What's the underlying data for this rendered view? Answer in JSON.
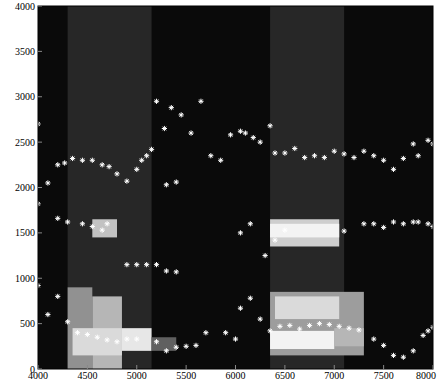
{
  "chart_data": {
    "type": "scatter",
    "marker": "star",
    "color": "#ffffff",
    "xlim": [
      4000,
      8000
    ],
    "ylim": [
      0,
      4000
    ],
    "xticks": [
      4000,
      4500,
      5000,
      5500,
      6000,
      6500,
      7000,
      7500,
      8000
    ],
    "yticks": [
      0,
      500,
      1000,
      1500,
      2000,
      2500,
      3000,
      3500,
      4000
    ],
    "grid": false,
    "zlim": [
      0,
      1
    ],
    "cells": [
      {
        "x0": 4300,
        "x1": 5150,
        "y0": 0,
        "y1": 4000,
        "value": 0.12
      },
      {
        "x0": 6350,
        "x1": 7100,
        "y0": 0,
        "y1": 4000,
        "value": 0.12
      },
      {
        "x0": 4300,
        "x1": 4550,
        "y0": 0,
        "y1": 900,
        "value": 0.55
      },
      {
        "x0": 4550,
        "x1": 4850,
        "y0": 0,
        "y1": 800,
        "value": 0.7
      },
      {
        "x0": 4350,
        "x1": 4850,
        "y0": 150,
        "y1": 450,
        "value": 0.85
      },
      {
        "x0": 4850,
        "x1": 5150,
        "y0": 200,
        "y1": 450,
        "value": 0.9
      },
      {
        "x0": 4550,
        "x1": 4800,
        "y0": 1450,
        "y1": 1650,
        "value": 0.75
      },
      {
        "x0": 5150,
        "x1": 5400,
        "y0": 200,
        "y1": 350,
        "value": 0.35
      },
      {
        "x0": 6350,
        "x1": 7300,
        "y0": 150,
        "y1": 850,
        "value": 0.6
      },
      {
        "x0": 6350,
        "x1": 7000,
        "y0": 220,
        "y1": 420,
        "value": 0.95
      },
      {
        "x0": 6400,
        "x1": 7050,
        "y0": 550,
        "y1": 800,
        "value": 0.85
      },
      {
        "x0": 7000,
        "x1": 7300,
        "y0": 250,
        "y1": 450,
        "value": 0.7
      },
      {
        "x0": 6350,
        "x1": 7050,
        "y0": 1350,
        "y1": 1650,
        "value": 0.8
      },
      {
        "x0": 6350,
        "x1": 7050,
        "y0": 1450,
        "y1": 1600,
        "value": 0.95
      }
    ],
    "series": [
      {
        "color": "#ffffff",
        "marker": "star",
        "x": [
          4000,
          4100,
          4200,
          4270,
          4350,
          4450,
          4550,
          4650,
          4720,
          4800,
          4900,
          5000,
          5050,
          5100,
          5150,
          5200,
          5280,
          5350,
          5450,
          5550,
          5650,
          5750,
          5850,
          5950,
          6050,
          6100,
          6180,
          6250,
          6350,
          6400,
          6500,
          6600,
          6700,
          6800,
          6900,
          7000,
          7100,
          7200,
          7300,
          7400,
          7500,
          7600,
          7700,
          7800,
          7850,
          7950,
          8000,
          4000,
          4200,
          4300,
          4450,
          4550,
          4650,
          4700,
          4900,
          5000,
          5100,
          5200,
          5300,
          5400,
          5300,
          5400,
          6050,
          6150,
          6300,
          6400,
          6500,
          7100,
          7300,
          7400,
          7500,
          7600,
          7700,
          7800,
          7850,
          7950,
          8000,
          4000,
          4100,
          4200,
          4300,
          4400,
          4500,
          4600,
          4700,
          4800,
          4900,
          5000,
          5200,
          5300,
          5400,
          5500,
          5600,
          5700,
          5900,
          6000,
          6050,
          6150,
          6250,
          6350,
          6450,
          6550,
          6650,
          6750,
          6850,
          6950,
          7050,
          7150,
          7250,
          7400,
          7500,
          7600,
          7700,
          7800,
          7900,
          7950,
          8000
        ],
        "values": [
          2700,
          2050,
          2250,
          2270,
          2320,
          2300,
          2300,
          2250,
          2230,
          2150,
          2070,
          2200,
          2300,
          2350,
          2420,
          2950,
          2650,
          2880,
          2800,
          2600,
          2950,
          2350,
          2300,
          2580,
          2620,
          2600,
          2550,
          2500,
          2680,
          2380,
          2380,
          2430,
          2330,
          2350,
          2330,
          2400,
          2370,
          2330,
          2400,
          2350,
          2300,
          2200,
          2320,
          2480,
          2350,
          2520,
          2480,
          1820,
          1660,
          1620,
          1600,
          1570,
          1530,
          1600,
          1150,
          1150,
          1150,
          1150,
          1080,
          1070,
          2030,
          2060,
          1500,
          1600,
          1250,
          1420,
          1530,
          1520,
          1600,
          1600,
          1560,
          1620,
          1600,
          1620,
          1620,
          1600,
          1570,
          920,
          600,
          800,
          520,
          400,
          380,
          350,
          320,
          300,
          330,
          330,
          300,
          200,
          240,
          250,
          260,
          400,
          400,
          330,
          670,
          780,
          550,
          420,
          470,
          480,
          440,
          480,
          500,
          490,
          470,
          450,
          430,
          330,
          260,
          150,
          130,
          200,
          370,
          420,
          460
        ]
      }
    ]
  }
}
